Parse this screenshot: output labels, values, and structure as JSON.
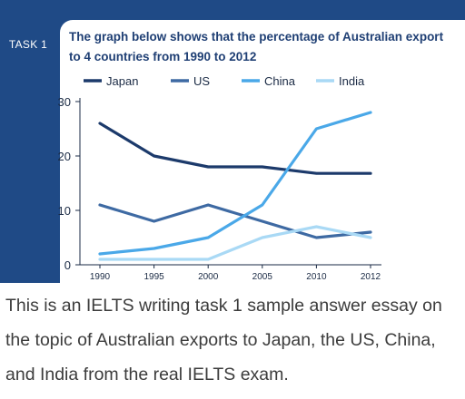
{
  "task_label": "TASK 1",
  "caption": "This is an IELTS writing task 1 sample answer essay on the topic of Australian exports to Japan, the US, China, and India from the real IELTS exam.",
  "chart_data": {
    "type": "line",
    "title": "The graph below shows that the percentage of Australian export to 4 countries from 1990 to 2012",
    "xlabel": "",
    "ylabel": "",
    "x": [
      "1990",
      "1995",
      "2000",
      "2005",
      "2010",
      "2012"
    ],
    "yticks": [
      0,
      10,
      20,
      30
    ],
    "ylim": [
      0,
      30
    ],
    "grid": false,
    "legend_position": "top",
    "series": [
      {
        "name": "Japan",
        "color": "#1c3a6b",
        "values": [
          26,
          20,
          18,
          18,
          16.8,
          16.8
        ]
      },
      {
        "name": "US",
        "color": "#3e6aa3",
        "values": [
          11,
          8,
          11,
          8,
          5,
          6
        ]
      },
      {
        "name": "China",
        "color": "#4aa8e8",
        "values": [
          2,
          3,
          5,
          11,
          25,
          28
        ]
      },
      {
        "name": "India",
        "color": "#a9d9f5",
        "values": [
          1,
          1,
          1,
          5,
          7,
          5
        ]
      }
    ]
  }
}
